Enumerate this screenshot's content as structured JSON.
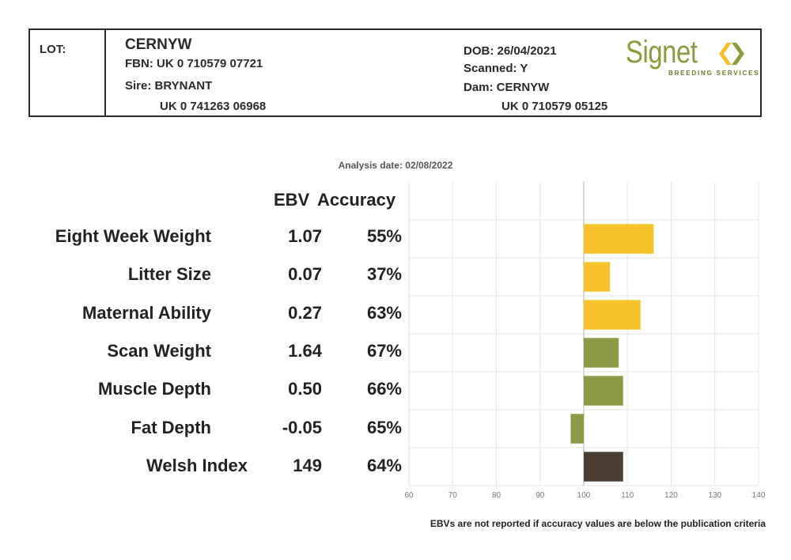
{
  "lot": {
    "lot_label": "LOT:",
    "name": "CERNYW",
    "fbn": "FBN: UK 0 710579 07721",
    "sire": "Sire: BRYNANT",
    "sire_id": "UK 0 741263 06968",
    "dob": "DOB: 26/04/2021",
    "scanned": "Scanned: Y",
    "dam": "Dam: CERNYW",
    "dam_id": "UK 0 710579 05125"
  },
  "logo": {
    "word": "Signet",
    "subtitle": "BREEDING SERVICES",
    "color": "#8a9a3c"
  },
  "analysis_date": "Analysis date: 02/08/2022",
  "columns": {
    "ebv": "EBV",
    "accuracy": "Accuracy"
  },
  "footnote": "EBVs are not reported if accuracy values are below the publication criteria",
  "chart_data": {
    "type": "bar",
    "orientation": "horizontal",
    "baseline": 100,
    "xlim": [
      60,
      140
    ],
    "x_ticks": [
      "60",
      "70",
      "80",
      "90",
      "100",
      "110",
      "120",
      "130",
      "140"
    ],
    "grid": true,
    "rows": [
      {
        "trait": "Eight Week Weight",
        "ebv": "1.07",
        "accuracy": "55%",
        "value": 116,
        "color": "#f5c22b"
      },
      {
        "trait": "Litter Size",
        "ebv": "0.07",
        "accuracy": "37%",
        "value": 106,
        "color": "#f5c22b"
      },
      {
        "trait": "Maternal Ability",
        "ebv": "0.27",
        "accuracy": "63%",
        "value": 113,
        "color": "#f5c22b"
      },
      {
        "trait": "Scan Weight",
        "ebv": "1.64",
        "accuracy": "67%",
        "value": 108,
        "color": "#8c9a45"
      },
      {
        "trait": "Muscle Depth",
        "ebv": "0.50",
        "accuracy": "66%",
        "value": 109,
        "color": "#8c9a45"
      },
      {
        "trait": "Fat Depth",
        "ebv": "-0.05",
        "accuracy": "65%",
        "value": 97,
        "color": "#8c9a45"
      },
      {
        "trait": "Welsh Index",
        "ebv": "149",
        "accuracy": "64%",
        "value": 109,
        "color": "#4a3d33"
      }
    ]
  }
}
